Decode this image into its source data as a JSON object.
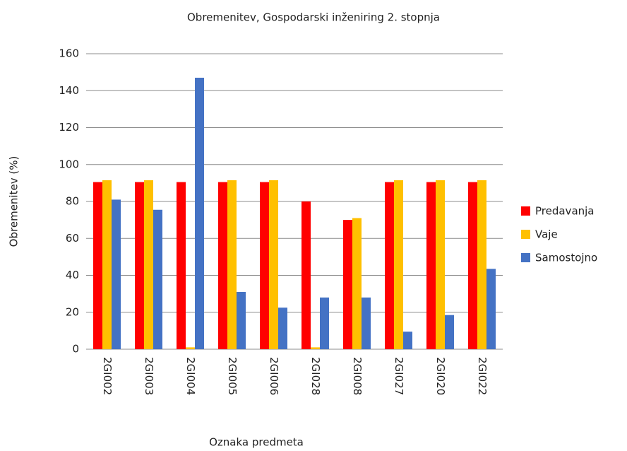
{
  "chart_data": {
    "type": "bar",
    "title": "Obremenitev, Gospodarski inženiring 2. stopnja",
    "x_label": "Oznaka predmeta",
    "y_label": "Obremenitev (%)",
    "categories": [
      "2GI002",
      "2GI003",
      "2GI004",
      "2GI005",
      "2GI006",
      "2GI028",
      "2GI008",
      "2GI027",
      "2GI020",
      "2GI022"
    ],
    "series": [
      {
        "name": "Predavanja",
        "color": "#ff0000",
        "values": [
          90.5,
          90.5,
          90.5,
          90.5,
          90.5,
          80,
          70,
          90.5,
          90.5,
          90.5
        ]
      },
      {
        "name": "Vaje",
        "color": "#ffc000",
        "values": [
          91.5,
          91.5,
          1,
          91.5,
          91.5,
          1,
          71,
          91.5,
          91.5,
          91.5
        ]
      },
      {
        "name": "Samostojno",
        "color": "#4472c4",
        "values": [
          81,
          75.5,
          147,
          31,
          22.5,
          28,
          28,
          9.5,
          18.5,
          43.5
        ]
      }
    ],
    "ylim": [
      0,
      160
    ],
    "yticks": [
      0,
      20,
      40,
      60,
      80,
      100,
      120,
      140,
      160
    ],
    "grid": true,
    "legend": "right"
  }
}
